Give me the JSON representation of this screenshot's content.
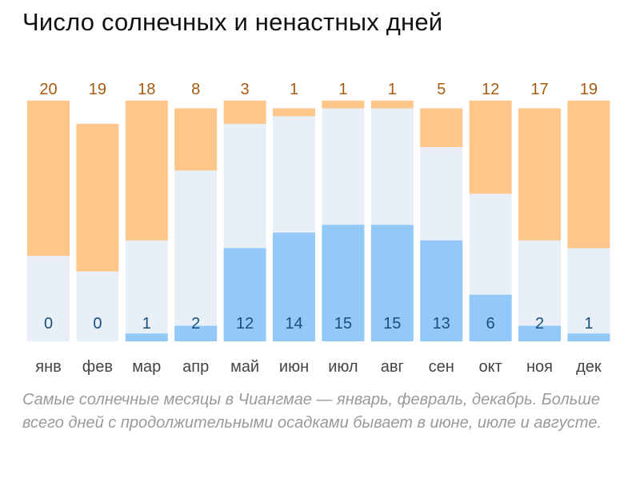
{
  "title": "Число солнечных и ненастных дней",
  "caption": "Самые солнечные месяцы в Чиангмае — январь, февраль, декабрь. Больше всего дней с продолжительными осадками бывает в июне, июле и августе.",
  "colors": {
    "sunny": "#ffc68a",
    "sunny_label": "#a85b10",
    "rainy": "#92c9f8",
    "rainy_label": "#1a4f80",
    "other": "#e8eff6",
    "month_label": "#444444"
  },
  "chart_data": {
    "type": "bar",
    "stacked": true,
    "categories": [
      "янв",
      "фев",
      "мар",
      "апр",
      "май",
      "июн",
      "июл",
      "авг",
      "сен",
      "окт",
      "ноя",
      "дек"
    ],
    "series": [
      {
        "values": [
          20,
          19,
          18,
          8,
          3,
          1,
          1,
          1,
          5,
          12,
          17,
          19
        ]
      },
      {
        "values": [
          0,
          0,
          1,
          2,
          12,
          14,
          15,
          15,
          13,
          6,
          2,
          1
        ]
      }
    ],
    "days_in_month": [
      31,
      28,
      31,
      30,
      31,
      30,
      31,
      31,
      30,
      31,
      30,
      31
    ],
    "ylim": [
      0,
      35
    ]
  }
}
